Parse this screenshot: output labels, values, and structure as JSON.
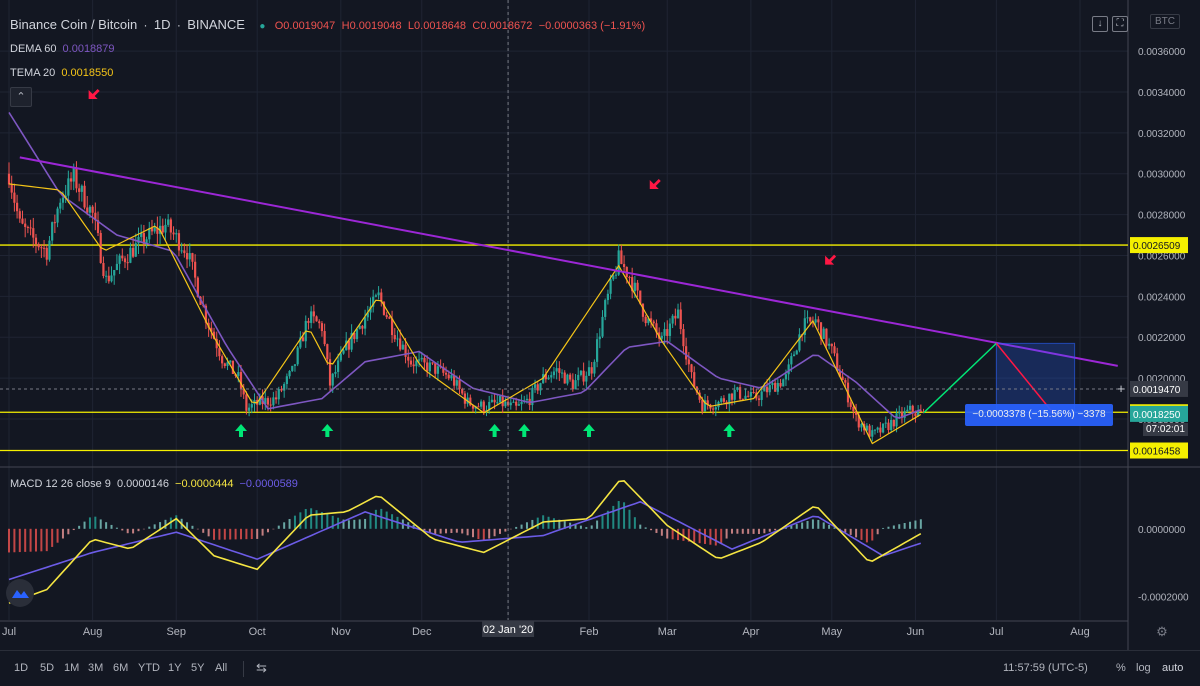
{
  "header": {
    "symbol": "Binance Coin / Bitcoin",
    "interval": "1D",
    "exchange": "BINANCE",
    "ohlc": {
      "open": "O0.0019047",
      "high": "H0.0019048",
      "low": "L0.0018648",
      "close": "C0.0018672",
      "change": "−0.0000363 (−1.91%)"
    },
    "dema_label": "DEMA 60",
    "dema_value": "0.0018879",
    "tema_label": "TEMA 20",
    "tema_value": "0.0018550",
    "currency": "BTC"
  },
  "macd": {
    "label": "MACD 12 26 close 9",
    "v1": "0.0000146",
    "v2": "−0.0000444",
    "v3": "−0.0000589"
  },
  "bottom_bar": {
    "timeframes": [
      "1D",
      "5D",
      "1M",
      "3M",
      "6M",
      "YTD",
      "1Y",
      "5Y",
      "All"
    ],
    "time": "11:57:59 (UTC-5)",
    "percent": "%",
    "log": "log",
    "auto": "auto"
  },
  "measure_label": "−0.0003378 (−15.56%) −3378",
  "countdown": "07:02:01",
  "colors": {
    "bg": "#131722",
    "up": "#26a69a",
    "down": "#ef5350",
    "dema": "#7e57c2",
    "tema": "#f5c518",
    "trend": "#9c27d6",
    "hline": "#f5f000",
    "macd": "#f5e542",
    "signal": "#6c5ce7"
  },
  "chart_data": [
    {
      "type": "candlestick",
      "title": "Binance Coin / Bitcoin, 1D, BINANCE",
      "x_ticks": [
        "Jul",
        "Aug",
        "Sep",
        "Oct",
        "Nov",
        "Dec",
        "02 Jan '20",
        "Feb",
        "Mar",
        "Apr",
        "May",
        "Jun",
        "Jul",
        "Aug"
      ],
      "y_ticks": [
        0.0036,
        0.0034,
        0.0032,
        0.003,
        0.0028,
        0.0026,
        0.0024,
        0.0022,
        0.002,
        0.0018
      ],
      "ylim": [
        0.00157,
        0.00385
      ],
      "price_labels": [
        {
          "name": "resistance",
          "value": "0.0026509",
          "color": "#f5f000"
        },
        {
          "name": "cursor",
          "value": "0.0019470",
          "color": "#363a45"
        },
        {
          "name": "support",
          "value": "0.0018330",
          "color": "#f5f000"
        },
        {
          "name": "last",
          "value": "0.0018250",
          "color": "#26a69a"
        },
        {
          "name": "low-line",
          "value": "0.0016458",
          "color": "#f5f000"
        }
      ],
      "horizontal_lines": [
        0.0026509,
        0.001833,
        0.0016458
      ],
      "trendline": {
        "from": {
          "date": "2019-07-05",
          "price": 0.00308
        },
        "to": {
          "date": "2020-08-15",
          "price": 0.00206
        }
      },
      "series_close_anchors": [
        {
          "date": "2019-07-01",
          "price": 0.003
        },
        {
          "date": "2019-07-05",
          "price": 0.00275
        },
        {
          "date": "2019-07-10",
          "price": 0.00268
        },
        {
          "date": "2019-07-15",
          "price": 0.00262
        },
        {
          "date": "2019-07-20",
          "price": 0.00288
        },
        {
          "date": "2019-07-25",
          "price": 0.00298
        },
        {
          "date": "2019-08-01",
          "price": 0.0028
        },
        {
          "date": "2019-08-06",
          "price": 0.00248
        },
        {
          "date": "2019-08-12",
          "price": 0.00258
        },
        {
          "date": "2019-08-20",
          "price": 0.00268
        },
        {
          "date": "2019-08-28",
          "price": 0.00275
        },
        {
          "date": "2019-09-05",
          "price": 0.00262
        },
        {
          "date": "2019-09-12",
          "price": 0.0023
        },
        {
          "date": "2019-09-18",
          "price": 0.0021
        },
        {
          "date": "2019-09-24",
          "price": 0.002
        },
        {
          "date": "2019-09-27",
          "price": 0.00185
        },
        {
          "date": "2019-10-02",
          "price": 0.00188
        },
        {
          "date": "2019-10-08",
          "price": 0.0019
        },
        {
          "date": "2019-10-14",
          "price": 0.00203
        },
        {
          "date": "2019-10-20",
          "price": 0.0023
        },
        {
          "date": "2019-10-25",
          "price": 0.00225
        },
        {
          "date": "2019-10-28",
          "price": 0.00197
        },
        {
          "date": "2019-11-03",
          "price": 0.00215
        },
        {
          "date": "2019-11-10",
          "price": 0.0023
        },
        {
          "date": "2019-11-15",
          "price": 0.0024
        },
        {
          "date": "2019-11-20",
          "price": 0.00225
        },
        {
          "date": "2019-11-27",
          "price": 0.00208
        },
        {
          "date": "2019-12-05",
          "price": 0.00205
        },
        {
          "date": "2019-12-12",
          "price": 0.002
        },
        {
          "date": "2019-12-18",
          "price": 0.00188
        },
        {
          "date": "2019-12-24",
          "price": 0.00186
        },
        {
          "date": "2019-12-30",
          "price": 0.00188
        },
        {
          "date": "2020-01-05",
          "price": 0.00185
        },
        {
          "date": "2020-01-10",
          "price": 0.0019
        },
        {
          "date": "2020-01-15",
          "price": 0.002
        },
        {
          "date": "2020-01-20",
          "price": 0.00204
        },
        {
          "date": "2020-01-26",
          "price": 0.00197
        },
        {
          "date": "2020-02-02",
          "price": 0.00205
        },
        {
          "date": "2020-02-07",
          "price": 0.00235
        },
        {
          "date": "2020-02-12",
          "price": 0.00258
        },
        {
          "date": "2020-02-16",
          "price": 0.0025
        },
        {
          "date": "2020-02-22",
          "price": 0.0023
        },
        {
          "date": "2020-02-28",
          "price": 0.00218
        },
        {
          "date": "2020-03-05",
          "price": 0.00232
        },
        {
          "date": "2020-03-10",
          "price": 0.002
        },
        {
          "date": "2020-03-14",
          "price": 0.00187
        },
        {
          "date": "2020-03-20",
          "price": 0.00188
        },
        {
          "date": "2020-03-26",
          "price": 0.00193
        },
        {
          "date": "2020-04-02",
          "price": 0.0019
        },
        {
          "date": "2020-04-08",
          "price": 0.00195
        },
        {
          "date": "2020-04-14",
          "price": 0.002
        },
        {
          "date": "2020-04-20",
          "price": 0.00225
        },
        {
          "date": "2020-04-25",
          "price": 0.00228
        },
        {
          "date": "2020-05-01",
          "price": 0.00213
        },
        {
          "date": "2020-05-06",
          "price": 0.00195
        },
        {
          "date": "2020-05-10",
          "price": 0.0018
        },
        {
          "date": "2020-05-16",
          "price": 0.00172
        },
        {
          "date": "2020-05-20",
          "price": 0.00175
        },
        {
          "date": "2020-05-25",
          "price": 0.0018
        },
        {
          "date": "2020-05-30",
          "price": 0.00184
        },
        {
          "date": "2020-06-04",
          "price": 0.00182
        }
      ],
      "dema_anchors": [
        {
          "date": "2019-07-01",
          "price": 0.0033
        },
        {
          "date": "2019-07-20",
          "price": 0.0029
        },
        {
          "date": "2019-08-10",
          "price": 0.0027
        },
        {
          "date": "2019-08-31",
          "price": 0.00262
        },
        {
          "date": "2019-09-20",
          "price": 0.00215
        },
        {
          "date": "2019-10-05",
          "price": 0.00185
        },
        {
          "date": "2019-10-25",
          "price": 0.0019
        },
        {
          "date": "2019-11-10",
          "price": 0.00208
        },
        {
          "date": "2019-11-30",
          "price": 0.00213
        },
        {
          "date": "2019-12-20",
          "price": 0.00195
        },
        {
          "date": "2020-01-10",
          "price": 0.00188
        },
        {
          "date": "2020-01-30",
          "price": 0.00193
        },
        {
          "date": "2020-02-15",
          "price": 0.00215
        },
        {
          "date": "2020-03-01",
          "price": 0.00218
        },
        {
          "date": "2020-03-20",
          "price": 0.002
        },
        {
          "date": "2020-04-05",
          "price": 0.00195
        },
        {
          "date": "2020-04-25",
          "price": 0.00212
        },
        {
          "date": "2020-05-10",
          "price": 0.00198
        },
        {
          "date": "2020-05-25",
          "price": 0.0018
        },
        {
          "date": "2020-06-04",
          "price": 0.00185
        }
      ],
      "tema_anchors": [
        {
          "date": "2019-07-01",
          "price": 0.00295
        },
        {
          "date": "2019-07-20",
          "price": 0.00292
        },
        {
          "date": "2019-08-05",
          "price": 0.00262
        },
        {
          "date": "2019-08-25",
          "price": 0.00275
        },
        {
          "date": "2019-09-15",
          "price": 0.0022
        },
        {
          "date": "2019-09-30",
          "price": 0.00186
        },
        {
          "date": "2019-10-20",
          "price": 0.00225
        },
        {
          "date": "2019-10-28",
          "price": 0.00205
        },
        {
          "date": "2019-11-15",
          "price": 0.0024
        },
        {
          "date": "2019-12-01",
          "price": 0.00205
        },
        {
          "date": "2019-12-24",
          "price": 0.00183
        },
        {
          "date": "2020-01-15",
          "price": 0.002
        },
        {
          "date": "2020-02-12",
          "price": 0.00255
        },
        {
          "date": "2020-02-28",
          "price": 0.00218
        },
        {
          "date": "2020-03-16",
          "price": 0.00186
        },
        {
          "date": "2020-04-02",
          "price": 0.0019
        },
        {
          "date": "2020-04-24",
          "price": 0.00228
        },
        {
          "date": "2020-05-16",
          "price": 0.00168
        },
        {
          "date": "2020-06-04",
          "price": 0.00183
        }
      ],
      "signals": {
        "buy_arrows": [
          "2019-09-25",
          "2019-10-27",
          "2019-12-28",
          "2020-01-08",
          "2020-02-01",
          "2020-03-24"
        ],
        "sell_arrows": [
          {
            "date": "2019-08-01",
            "price": 0.00338
          },
          {
            "date": "2020-02-25",
            "price": 0.00294
          },
          {
            "date": "2020-04-30",
            "price": 0.00257
          }
        ]
      },
      "projection": {
        "up_from": {
          "date": "2020-06-04",
          "price": 0.00183
        },
        "up_to": {
          "date": "2020-07-01",
          "price": 0.00217
        },
        "down_to": {
          "date": "2020-07-22",
          "price": 0.00183
        },
        "box": {
          "from": "2020-07-01",
          "to": "2020-07-30",
          "top": 0.00217,
          "bottom": 0.00183
        }
      }
    },
    {
      "type": "line",
      "title": "MACD 12 26 close 9",
      "y_ticks": [
        0.0,
        -0.0002
      ],
      "ylim": [
        -0.00027,
        0.00018
      ],
      "macd_anchors": [
        {
          "date": "2019-07-01",
          "value": -0.00022
        },
        {
          "date": "2019-07-15",
          "value": -0.00018
        },
        {
          "date": "2019-08-01",
          "value": -3e-05
        },
        {
          "date": "2019-08-15",
          "value": -6e-05
        },
        {
          "date": "2019-09-01",
          "value": 3e-05
        },
        {
          "date": "2019-09-15",
          "value": -8e-05
        },
        {
          "date": "2019-10-01",
          "value": -0.00012
        },
        {
          "date": "2019-10-20",
          "value": 4e-05
        },
        {
          "date": "2019-11-03",
          "value": 5e-05
        },
        {
          "date": "2019-11-15",
          "value": 0.0001
        },
        {
          "date": "2019-12-05",
          "value": -3e-05
        },
        {
          "date": "2019-12-24",
          "value": -7e-05
        },
        {
          "date": "2020-01-15",
          "value": 2e-05
        },
        {
          "date": "2020-02-01",
          "value": 3e-05
        },
        {
          "date": "2020-02-13",
          "value": 0.00015
        },
        {
          "date": "2020-03-01",
          "value": 1e-05
        },
        {
          "date": "2020-03-20",
          "value": -9e-05
        },
        {
          "date": "2020-04-05",
          "value": -4e-05
        },
        {
          "date": "2020-04-25",
          "value": 7e-05
        },
        {
          "date": "2020-05-15",
          "value": -0.0001
        },
        {
          "date": "2020-06-04",
          "value": -1e-05
        }
      ],
      "signal_anchors": [
        {
          "date": "2019-07-01",
          "value": -0.00015
        },
        {
          "date": "2019-08-01",
          "value": -7e-05
        },
        {
          "date": "2019-09-01",
          "value": -1e-05
        },
        {
          "date": "2019-10-01",
          "value": -9e-05
        },
        {
          "date": "2019-11-10",
          "value": 5e-05
        },
        {
          "date": "2019-12-15",
          "value": -4e-05
        },
        {
          "date": "2020-01-15",
          "value": -2e-05
        },
        {
          "date": "2020-02-20",
          "value": 8e-05
        },
        {
          "date": "2020-03-25",
          "value": -6e-05
        },
        {
          "date": "2020-04-25",
          "value": 4e-05
        },
        {
          "date": "2020-05-20",
          "value": -8e-05
        },
        {
          "date": "2020-06-04",
          "value": -4e-05
        }
      ]
    }
  ]
}
